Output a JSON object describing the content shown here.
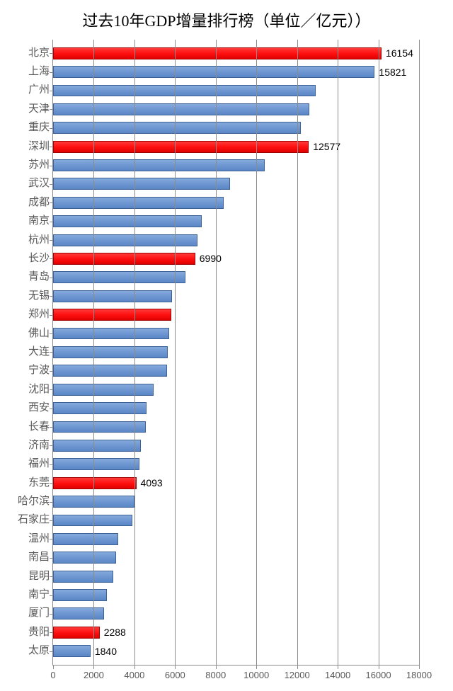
{
  "title": "过去10年GDP增量排行榜（单位／亿元））",
  "title_fontsize": 22,
  "title_color": "#000000",
  "background_color": "#ffffff",
  "axis_color": "#8c8c8c",
  "grid_color": "#8c8c8c",
  "tick_label_color": "#595959",
  "tick_fontsize": 13,
  "ylabel_fontsize": 15,
  "value_label_fontsize": 14,
  "value_label_color": "#000000",
  "bar_color_blue": "#6e97d2",
  "bar_border_blue": "#3b6196",
  "bar_color_red": "#ff1010",
  "bar_border_red": "#a00000",
  "x_axis": {
    "min": 0,
    "max": 18000,
    "step": 2000,
    "ticks": [
      0,
      2000,
      4000,
      6000,
      8000,
      10000,
      12000,
      14000,
      16000,
      18000
    ]
  },
  "data": [
    {
      "label": "北京",
      "value": 16154,
      "color": "red",
      "show_value": true
    },
    {
      "label": "上海",
      "value": 15821,
      "color": "blue",
      "show_value": true
    },
    {
      "label": "广州",
      "value": 12900,
      "color": "blue",
      "show_value": false
    },
    {
      "label": "天津",
      "value": 12600,
      "color": "blue",
      "show_value": false
    },
    {
      "label": "重庆",
      "value": 12200,
      "color": "blue",
      "show_value": false
    },
    {
      "label": "深圳",
      "value": 12577,
      "color": "red",
      "show_value": true
    },
    {
      "label": "苏州",
      "value": 10400,
      "color": "blue",
      "show_value": false
    },
    {
      "label": "武汉",
      "value": 8700,
      "color": "blue",
      "show_value": false
    },
    {
      "label": "成都",
      "value": 8400,
      "color": "blue",
      "show_value": false
    },
    {
      "label": "南京",
      "value": 7300,
      "color": "blue",
      "show_value": false
    },
    {
      "label": "杭州",
      "value": 7100,
      "color": "blue",
      "show_value": false
    },
    {
      "label": "长沙",
      "value": 6990,
      "color": "red",
      "show_value": true
    },
    {
      "label": "青岛",
      "value": 6500,
      "color": "blue",
      "show_value": false
    },
    {
      "label": "无锡",
      "value": 5850,
      "color": "blue",
      "show_value": false
    },
    {
      "label": "郑州",
      "value": 5800,
      "color": "red",
      "show_value": false
    },
    {
      "label": "佛山",
      "value": 5700,
      "color": "blue",
      "show_value": false
    },
    {
      "label": "大连",
      "value": 5650,
      "color": "blue",
      "show_value": false
    },
    {
      "label": "宁波",
      "value": 5600,
      "color": "blue",
      "show_value": false
    },
    {
      "label": "沈阳",
      "value": 4950,
      "color": "blue",
      "show_value": false
    },
    {
      "label": "西安",
      "value": 4600,
      "color": "blue",
      "show_value": false
    },
    {
      "label": "长春",
      "value": 4550,
      "color": "blue",
      "show_value": false
    },
    {
      "label": "济南",
      "value": 4300,
      "color": "blue",
      "show_value": false
    },
    {
      "label": "福州",
      "value": 4250,
      "color": "blue",
      "show_value": false
    },
    {
      "label": "东莞",
      "value": 4093,
      "color": "red",
      "show_value": true
    },
    {
      "label": "哈尔滨",
      "value": 4000,
      "color": "blue",
      "show_value": false
    },
    {
      "label": "石家庄",
      "value": 3900,
      "color": "blue",
      "show_value": false
    },
    {
      "label": "温州",
      "value": 3200,
      "color": "blue",
      "show_value": false
    },
    {
      "label": "南昌",
      "value": 3100,
      "color": "blue",
      "show_value": false
    },
    {
      "label": "昆明",
      "value": 2950,
      "color": "blue",
      "show_value": false
    },
    {
      "label": "南宁",
      "value": 2650,
      "color": "blue",
      "show_value": false
    },
    {
      "label": "厦门",
      "value": 2500,
      "color": "blue",
      "show_value": false
    },
    {
      "label": "贵阳",
      "value": 2288,
      "color": "red",
      "show_value": true
    },
    {
      "label": "太原",
      "value": 1840,
      "color": "blue",
      "show_value": true
    }
  ]
}
